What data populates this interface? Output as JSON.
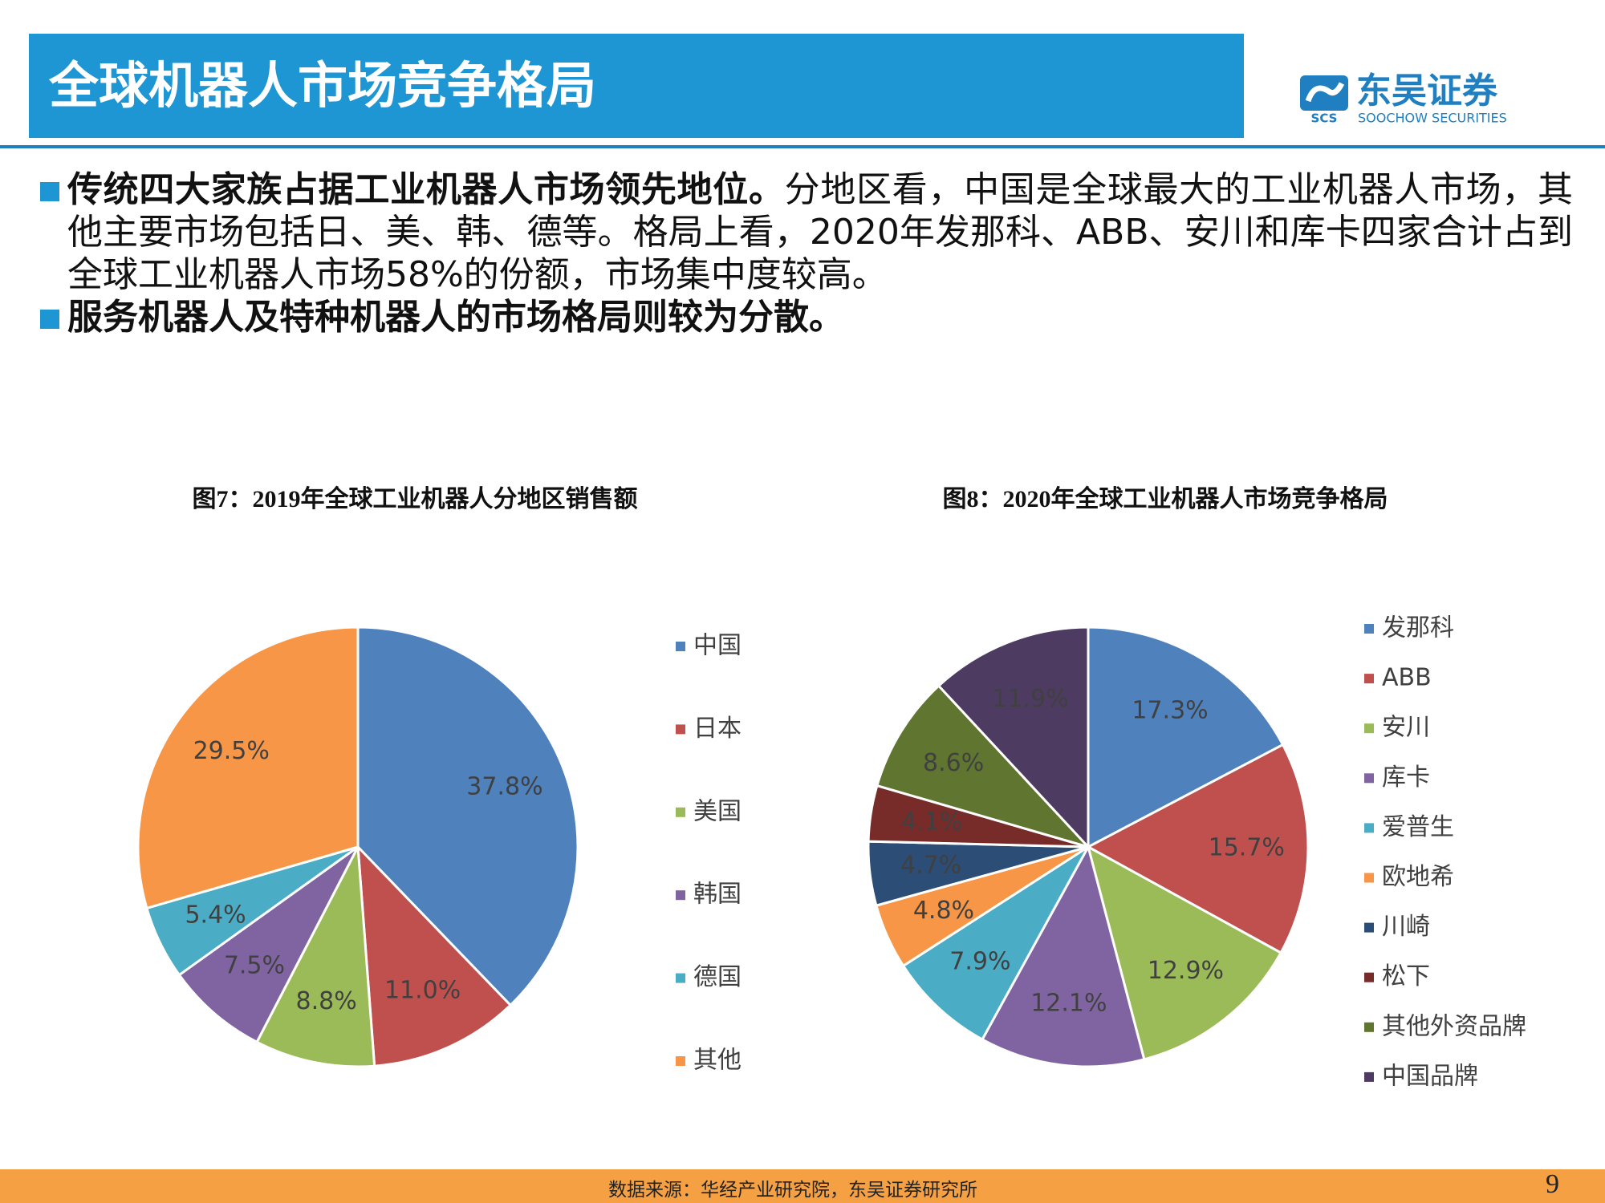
{
  "header": {
    "title": "全球机器人市场竞争格局",
    "logo_name": "东吴证券",
    "logo_sub": "SOOCHOW SECURITIES",
    "logo_abbr": "SCS"
  },
  "bullets": [
    {
      "bold": "传统四大家族占据工业机器人市场领先地位。",
      "text": "分地区看，中国是全球最大的工业机器人市场，其他主要市场包括日、美、韩、德等。格局上看，2020年发那科、ABB、安川和库卡四家合计占到全球工业机器人市场58%的份额，市场集中度较高。"
    },
    {
      "bold": "服务机器人及特种机器人的市场格局则较为分散。"
    }
  ],
  "chart_data": [
    {
      "type": "pie",
      "title": "图7：2019年全球工业机器人分地区销售额",
      "categories": [
        "中国",
        "日本",
        "美国",
        "韩国",
        "德国",
        "其他"
      ],
      "values": [
        37.8,
        11.0,
        8.8,
        7.5,
        5.4,
        29.5
      ],
      "value_labels": [
        "37.8%",
        "11.0%",
        "8.8%",
        "7.5%",
        "5.4%",
        "29.5%"
      ],
      "colors": [
        "#4f81bd",
        "#c0504d",
        "#9bbb59",
        "#8064a2",
        "#4bacc6",
        "#f79646"
      ],
      "legend": "right"
    },
    {
      "type": "pie",
      "title": "图8：2020年全球工业机器人市场竞争格局",
      "categories": [
        "发那科",
        "ABB",
        "安川",
        "库卡",
        "爱普生",
        "欧地希",
        "川崎",
        "松下",
        "其他外资品牌",
        "中国品牌"
      ],
      "values": [
        17.3,
        15.7,
        12.9,
        12.1,
        7.9,
        4.8,
        4.7,
        4.1,
        8.6,
        11.9
      ],
      "value_labels": [
        "17.3%",
        "15.7%",
        "12.9%",
        "12.1%",
        "7.9%",
        "4.8%",
        "4.7%",
        "4.1%",
        "8.6%",
        "11.9%"
      ],
      "colors": [
        "#4f81bd",
        "#c0504d",
        "#9bbb59",
        "#8064a2",
        "#4bacc6",
        "#f79646",
        "#2c4d75",
        "#772c2a",
        "#5f7530",
        "#4d3b62"
      ],
      "legend": "right"
    }
  ],
  "footer": {
    "source": "数据来源：华经产业研究院，东吴证券研究所",
    "page": "9"
  }
}
